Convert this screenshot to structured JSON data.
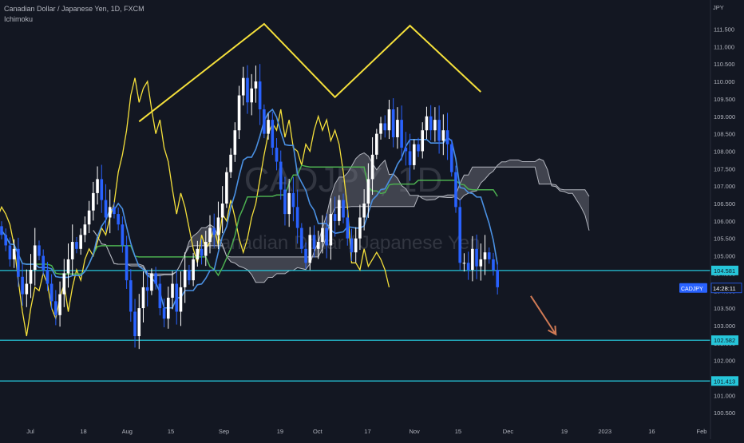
{
  "header": {
    "title": "Canadian Dollar / Japanese Yen, 1D, FXCM",
    "indicator": "Ichimoku"
  },
  "watermark": {
    "symbol": "CADJPY, 1D",
    "name": "Canadian Dollar / Japanese Yen"
  },
  "colors": {
    "background": "#131722",
    "up_candle": "#ffffff",
    "down_candle": "#2962ff",
    "conversion_line": "#4a90e2",
    "base_line": "#4caf50",
    "lagging_span": "#f5e03b",
    "cloud_fill": "#787b86",
    "horizontal_level": "#26c6da",
    "pattern_line": "#f5e03b",
    "arrow": "#d07a55"
  },
  "chart_data": {
    "type": "candlestick",
    "price_axis_unit": "JPY",
    "ylim": [
      100.0,
      112.0
    ],
    "y_ticks": [
      "100.500",
      "101.000",
      "101.500",
      "102.000",
      "102.500",
      "103.000",
      "103.500",
      "104.000",
      "104.500",
      "105.000",
      "105.500",
      "106.000",
      "106.500",
      "107.000",
      "107.500",
      "108.000",
      "108.500",
      "109.000",
      "109.500",
      "110.000",
      "110.500",
      "111.000",
      "111.500"
    ],
    "x_ticks": [
      "Jul",
      "18",
      "Aug",
      "15",
      "Sep",
      "19",
      "Oct",
      "17",
      "Nov",
      "15",
      "Dec",
      "19",
      "2023",
      "16",
      "Feb"
    ],
    "horizontal_levels": [
      {
        "label": "104.581",
        "value": 104.581
      },
      {
        "label": "102.582",
        "value": 102.582
      },
      {
        "label": "101.413",
        "value": 101.413
      }
    ],
    "last_price": {
      "symbol": "CADJPY",
      "countdown": "14:28:11",
      "value": 104.08
    },
    "closes": [
      105.6,
      105.3,
      104.9,
      105.2,
      104.4,
      103.9,
      104.2,
      104.6,
      105.3,
      105.0,
      104.6,
      104.2,
      103.7,
      103.3,
      103.9,
      104.5,
      104.9,
      105.4,
      105.2,
      105.6,
      105.9,
      106.3,
      106.8,
      107.2,
      106.6,
      106.1,
      106.4,
      106.2,
      105.9,
      105.3,
      104.3,
      103.4,
      102.7,
      103.5,
      104.1,
      104.0,
      104.5,
      104.2,
      103.5,
      103.2,
      103.8,
      104.2,
      103.4,
      104.1,
      104.6,
      104.3,
      104.9,
      105.2,
      105.0,
      105.4,
      105.8,
      105.6,
      106.1,
      106.5,
      107.4,
      107.9,
      108.6,
      109.6,
      110.1,
      109.4,
      109.8,
      110.0,
      109.2,
      108.5,
      108.9,
      108.1,
      107.7,
      106.9,
      106.2,
      106.8,
      106.4,
      105.8,
      105.2,
      104.8,
      105.6,
      105.2,
      105.4,
      105.8,
      105.3,
      106.2,
      106.0,
      106.6,
      106.1,
      105.5,
      105.1,
      105.5,
      106.1,
      106.5,
      107.2,
      107.9,
      108.5,
      108.8,
      108.6,
      109.2,
      108.4,
      108.9,
      108.1,
      108.0,
      107.6,
      108.2,
      108.0,
      108.6,
      109.0,
      108.6,
      108.9,
      108.3,
      108.6,
      108.2,
      107.4,
      106.4,
      104.8,
      104.8,
      104.6,
      105.2,
      104.7,
      104.9,
      105.1,
      104.9,
      104.6,
      104.1
    ],
    "pattern": {
      "type": "double top",
      "points": [
        [
          33,
          108.85
        ],
        [
          63,
          111.65
        ],
        [
          80,
          109.55
        ],
        [
          98,
          111.6
        ],
        [
          115,
          109.7
        ]
      ]
    },
    "forecast_arrow": {
      "from": [
        127,
        103.85
      ],
      "to": [
        133,
        102.75
      ]
    }
  }
}
